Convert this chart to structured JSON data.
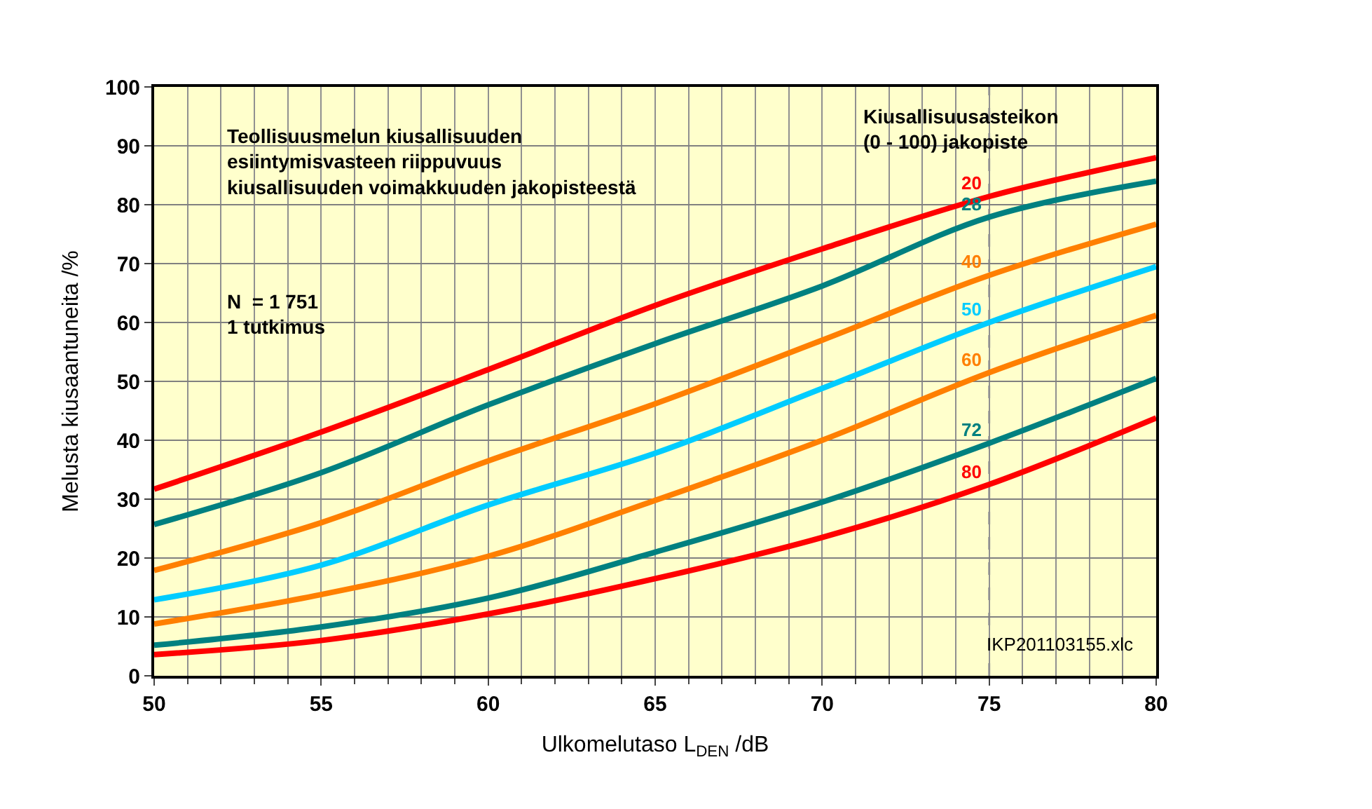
{
  "chart_data": {
    "type": "line",
    "xlabel": "Ulkomelutaso L$_{DEN}$ /dB",
    "ylabel": "Melusta kiusaantuneita /%",
    "x": [
      50,
      55,
      60,
      65,
      70,
      75,
      80
    ],
    "xlim": [
      50,
      80
    ],
    "xticks": [
      50,
      55,
      60,
      65,
      70,
      75,
      80
    ],
    "ylim": [
      0,
      100
    ],
    "yticks": [
      0,
      10,
      20,
      30,
      40,
      50,
      60,
      70,
      80,
      90,
      100
    ],
    "grid": true,
    "legend": false,
    "marker": "none",
    "line_style": "solid",
    "series": [
      {
        "name": "20",
        "color": "#ff0000",
        "values": [
          31.7,
          41.4,
          52,
          62.9,
          72.5,
          81.4,
          88
        ]
      },
      {
        "name": "28",
        "color": "#008080",
        "values": [
          25.7,
          34.5,
          46,
          56.4,
          66.2,
          77.9,
          84
        ]
      },
      {
        "name": "40",
        "color": "#ff7f00",
        "values": [
          17.9,
          26,
          36.5,
          46.2,
          57,
          68,
          76.7
        ]
      },
      {
        "name": "50",
        "color": "#00ccff",
        "values": [
          12.9,
          18.8,
          29,
          37.8,
          48.8,
          60,
          69.5
        ]
      },
      {
        "name": "60",
        "color": "#ff7f00",
        "values": [
          8.8,
          13.8,
          20.3,
          29.8,
          40,
          51.5,
          61.2
        ]
      },
      {
        "name": "72",
        "color": "#008080",
        "values": [
          5.2,
          8.3,
          13.2,
          21,
          29.5,
          39.5,
          50.5
        ]
      },
      {
        "name": "80",
        "color": "#ff0000",
        "values": [
          3.6,
          6,
          10.5,
          16.5,
          23.5,
          32.5,
          43.8
        ]
      }
    ],
    "ref_lines": [
      {
        "axis": "x",
        "value": 75,
        "color": "#a0a0a0",
        "line_style": "dashed"
      }
    ],
    "annotations": [
      "Teollisuusmelun kiusallisuuden\nesiintymisvasteen riippuvuus\nkiusallisuuden voimakkuuden jakopisteestä",
      "N  = 1 751\n1 tutkimus",
      "Kiusallisuusasteikon\n(0 - 100) jakopiste",
      "IKP201103155.xlc"
    ]
  }
}
